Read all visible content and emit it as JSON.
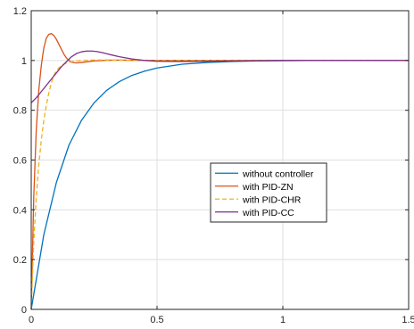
{
  "chart_data": {
    "type": "line",
    "title": "",
    "xlabel": "",
    "ylabel": "",
    "xlim": [
      0,
      1.5
    ],
    "ylim": [
      0,
      1.2
    ],
    "xticks": [
      "0",
      "0.5",
      "1",
      "1.5"
    ],
    "yticks": [
      "0",
      "0.2",
      "0.4",
      "0.6",
      "0.8",
      "1",
      "1.2"
    ],
    "grid": true,
    "legend_position": "center-right",
    "series": [
      {
        "name": "without controller",
        "color": "#0072BD",
        "dash": "solid",
        "x": [
          0,
          0.05,
          0.1,
          0.15,
          0.2,
          0.25,
          0.3,
          0.35,
          0.4,
          0.45,
          0.5,
          0.6,
          0.7,
          0.8,
          0.9,
          1.0,
          1.1,
          1.2,
          1.3,
          1.4,
          1.5
        ],
        "y": [
          0,
          0.3,
          0.51,
          0.66,
          0.76,
          0.83,
          0.88,
          0.915,
          0.94,
          0.957,
          0.97,
          0.985,
          0.992,
          0.996,
          0.998,
          0.999,
          1.0,
          1.0,
          1.0,
          1.0,
          1.0
        ]
      },
      {
        "name": "with PID-ZN",
        "color": "#D95319",
        "dash": "solid",
        "x": [
          0,
          0.01,
          0.02,
          0.03,
          0.04,
          0.05,
          0.06,
          0.07,
          0.08,
          0.09,
          0.1,
          0.11,
          0.12,
          0.13,
          0.14,
          0.15,
          0.16,
          0.18,
          0.2,
          0.25,
          0.3,
          0.35,
          0.4,
          0.5,
          0.6,
          0.8,
          1.0,
          1.5
        ],
        "y": [
          0,
          0.45,
          0.72,
          0.88,
          0.98,
          1.05,
          1.09,
          1.105,
          1.108,
          1.1,
          1.085,
          1.065,
          1.045,
          1.025,
          1.01,
          1.0,
          0.993,
          0.99,
          0.992,
          0.998,
          1.001,
          1.0015,
          1.001,
          1.0,
          1.0,
          1.0,
          1.0,
          1.0
        ]
      },
      {
        "name": "with PID-CHR",
        "color": "#EDB120",
        "dash": "dashed",
        "x": [
          0,
          0.01,
          0.02,
          0.03,
          0.04,
          0.05,
          0.06,
          0.07,
          0.08,
          0.09,
          0.1,
          0.12,
          0.14,
          0.16,
          0.18,
          0.2,
          0.25,
          0.3,
          0.35,
          0.4,
          0.5,
          0.6,
          0.8,
          1.0,
          1.5
        ],
        "y": [
          0,
          0.27,
          0.45,
          0.58,
          0.68,
          0.76,
          0.82,
          0.87,
          0.91,
          0.94,
          0.96,
          0.98,
          0.99,
          0.995,
          0.998,
          1.0,
          1.002,
          1.002,
          1.001,
          1.0,
          1.0,
          1.0,
          1.0,
          1.0,
          1.0
        ]
      },
      {
        "name": "with PID-CC",
        "color": "#7E2F8E",
        "dash": "solid",
        "x": [
          0,
          0.02,
          0.04,
          0.06,
          0.08,
          0.1,
          0.12,
          0.14,
          0.16,
          0.18,
          0.2,
          0.22,
          0.24,
          0.26,
          0.28,
          0.3,
          0.32,
          0.35,
          0.4,
          0.45,
          0.5,
          0.6,
          0.7,
          0.8,
          1.0,
          1.5
        ],
        "y": [
          0.83,
          0.85,
          0.875,
          0.9,
          0.925,
          0.95,
          0.975,
          0.995,
          1.015,
          1.028,
          1.035,
          1.038,
          1.038,
          1.036,
          1.032,
          1.027,
          1.022,
          1.015,
          1.006,
          1.0,
          0.997,
          0.996,
          0.997,
          0.998,
          1.0,
          1.0
        ]
      }
    ]
  }
}
